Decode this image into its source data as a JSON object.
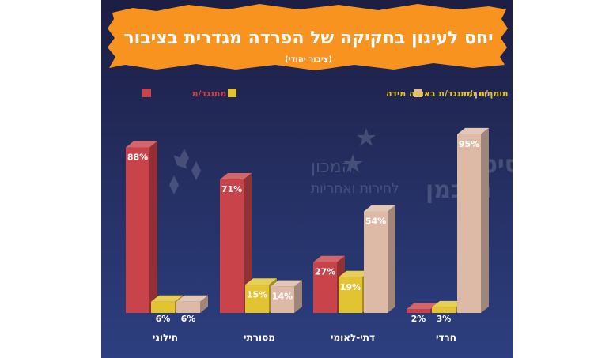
{
  "chart_data": {
    "type": "bar",
    "title": "יחס לעיגון בחקיקה של הפרדה מגדרית בציבור",
    "subtitle": "(ציבור יהודי)",
    "categories": [
      "חרדי",
      "דתי-לאומי",
      "מסורתי",
      "חילוני"
    ],
    "series": [
      {
        "name": "תומך/ת",
        "values": [
          95,
          54,
          14,
          6
        ]
      },
      {
        "name": "תומך/ת ומתנגד/ת באותה מידה",
        "values": [
          3,
          19,
          15,
          6
        ]
      },
      {
        "name": "מתנגד/ת",
        "values": [
          2,
          27,
          71,
          88
        ]
      }
    ],
    "value_suffix": "%",
    "ylim": [
      0,
      100
    ],
    "grid": false,
    "legend_position": "top",
    "colors": {
      "background_top": "#1c1e43",
      "background_bottom": "#2d3f80",
      "title_banner": "#f7931e",
      "title_text": "#ffffff",
      "support": "#dcbaa6",
      "neutral": "#e2c332",
      "oppose": "#c9444a"
    }
  },
  "watermark": {
    "left_line1": "המכון",
    "left_line2": "לחירות ואחריות",
    "right_line1": "אוניברסיטת",
    "right_line2": "רייכמן"
  }
}
